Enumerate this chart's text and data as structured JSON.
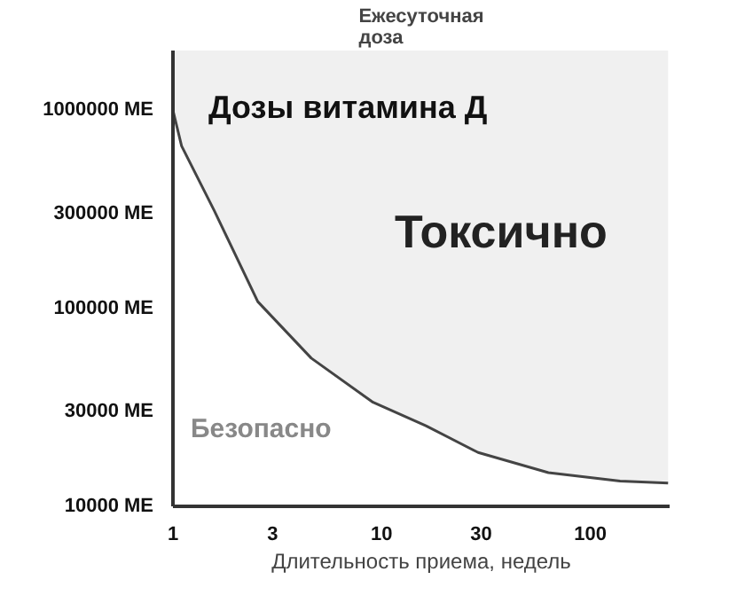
{
  "chart_data": {
    "type": "line",
    "title": "Дозы витамина Д",
    "xlabel": "Длительность приема, недель",
    "ylabel": "Ежесуточная доза",
    "x": [
      1,
      1.1,
      1.58,
      2.55,
      4.6,
      9.1,
      16.3,
      29,
      63,
      139,
      236
    ],
    "series": [
      {
        "color": "#444444",
        "values": [
          1000000,
          660000,
          310000,
          108000,
          56000,
          33500,
          25500,
          18700,
          14800,
          13400,
          13100
        ]
      }
    ],
    "log": "xy",
    "xlim": [
      1,
      240
    ],
    "ylim": [
      10000,
      2000000
    ],
    "xticks": [
      1,
      3,
      10,
      30,
      100
    ],
    "yticks": [
      {
        "value": 10000,
        "label": "10000 МЕ"
      },
      {
        "value": 30000,
        "label": "30000 МЕ"
      },
      {
        "value": 100000,
        "label": "100000 МЕ"
      },
      {
        "value": 300000,
        "label": "300000 МЕ"
      },
      {
        "value": 1000000,
        "label": "1000000 МЕ"
      }
    ],
    "grid": false,
    "annotations": [
      "Токсично",
      "Безопасно"
    ]
  }
}
